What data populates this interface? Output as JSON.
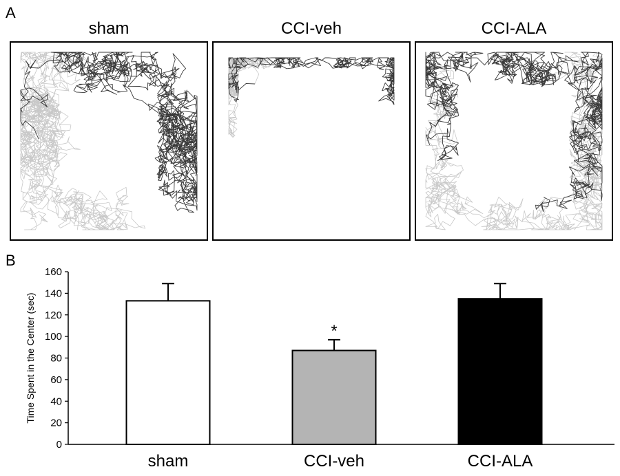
{
  "panels": {
    "a": "A",
    "b": "B"
  },
  "tracking": {
    "titles": [
      "sham",
      "CCI-veh",
      "CCI-ALA"
    ]
  },
  "chart_data": {
    "type": "bar",
    "categories": [
      "sham",
      "CCI-veh",
      "CCI-ALA"
    ],
    "values": [
      133,
      87,
      135
    ],
    "errors": [
      16,
      10,
      14
    ],
    "colors": [
      "#ffffff",
      "#b4b4b4",
      "#000000"
    ],
    "significance": [
      "",
      "*",
      ""
    ],
    "ylabel": "Time Spent in the Center (sec)",
    "ylim": [
      0,
      160
    ],
    "yticks": [
      0,
      20,
      40,
      60,
      80,
      100,
      120,
      140,
      160
    ],
    "grid": false
  }
}
